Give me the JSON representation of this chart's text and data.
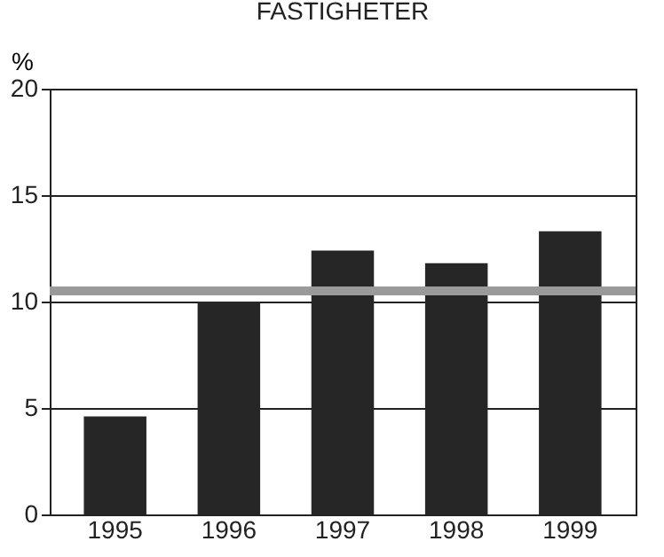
{
  "chart_data": {
    "type": "bar",
    "title": "FASTIGHETER",
    "ylabel": "%",
    "categories": [
      "1995",
      "1996",
      "1997",
      "1998",
      "1999"
    ],
    "values": [
      4.6,
      10.0,
      12.4,
      11.8,
      13.3
    ],
    "color": "#262626",
    "ylim": [
      0,
      20
    ],
    "yticks": [
      0,
      5,
      10,
      15,
      20
    ],
    "grid": "y",
    "ref_lines": [
      {
        "axis": "y",
        "value": 10.5,
        "color": "#9a9a9a"
      }
    ]
  }
}
